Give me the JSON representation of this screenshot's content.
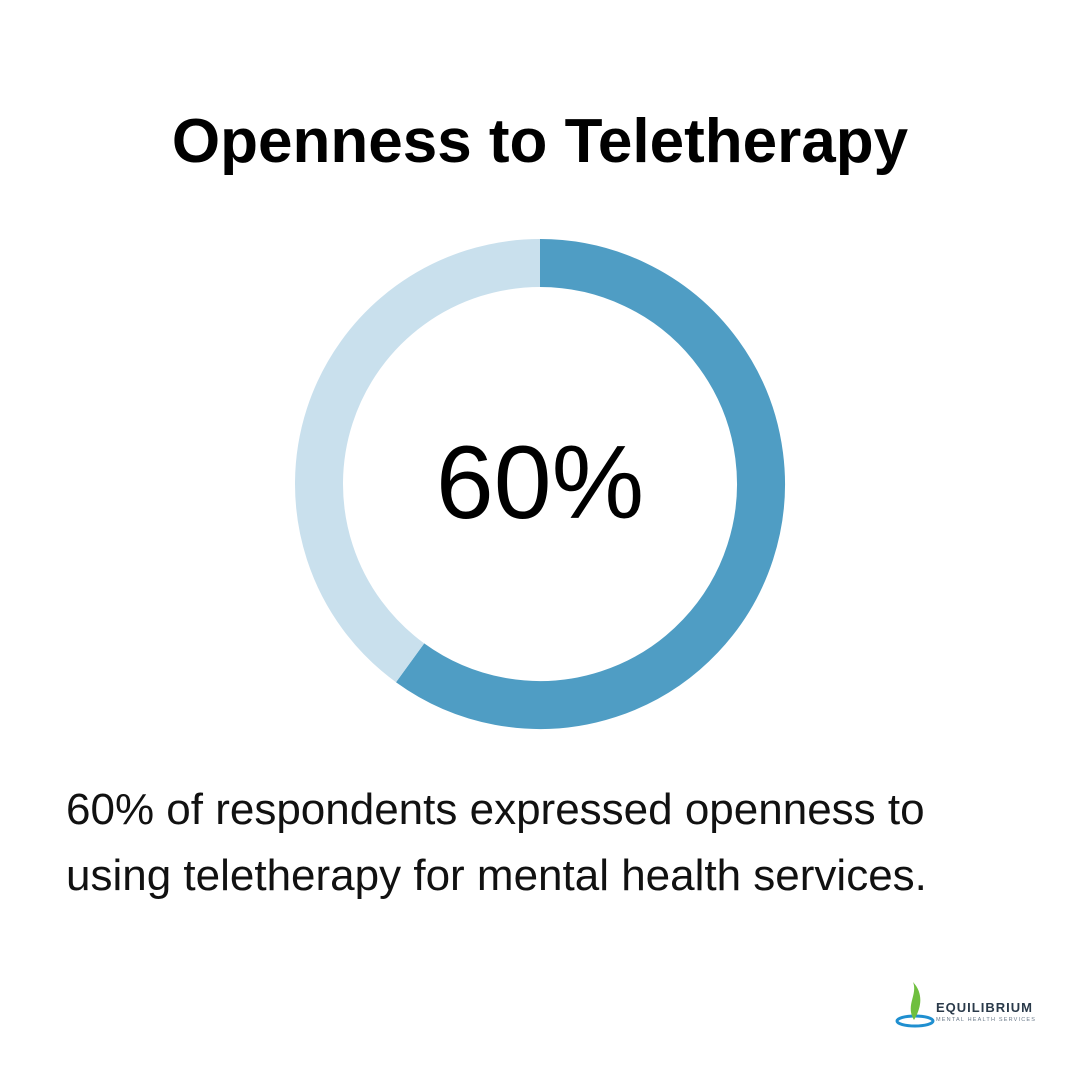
{
  "chart_data": {
    "type": "donut",
    "title": "Openness to Teletherapy",
    "values": [
      60,
      40
    ],
    "value_labels": [
      "60%",
      null
    ],
    "colors": [
      "#4f9dc4",
      "#c9e0ed"
    ],
    "caption": [
      "60% of respondents expressed openness to",
      "using teletherapy for mental health services."
    ]
  },
  "logo": {
    "name": "EQUILIBRIUM",
    "tagline": "MENTAL HEALTH SERVICES"
  }
}
